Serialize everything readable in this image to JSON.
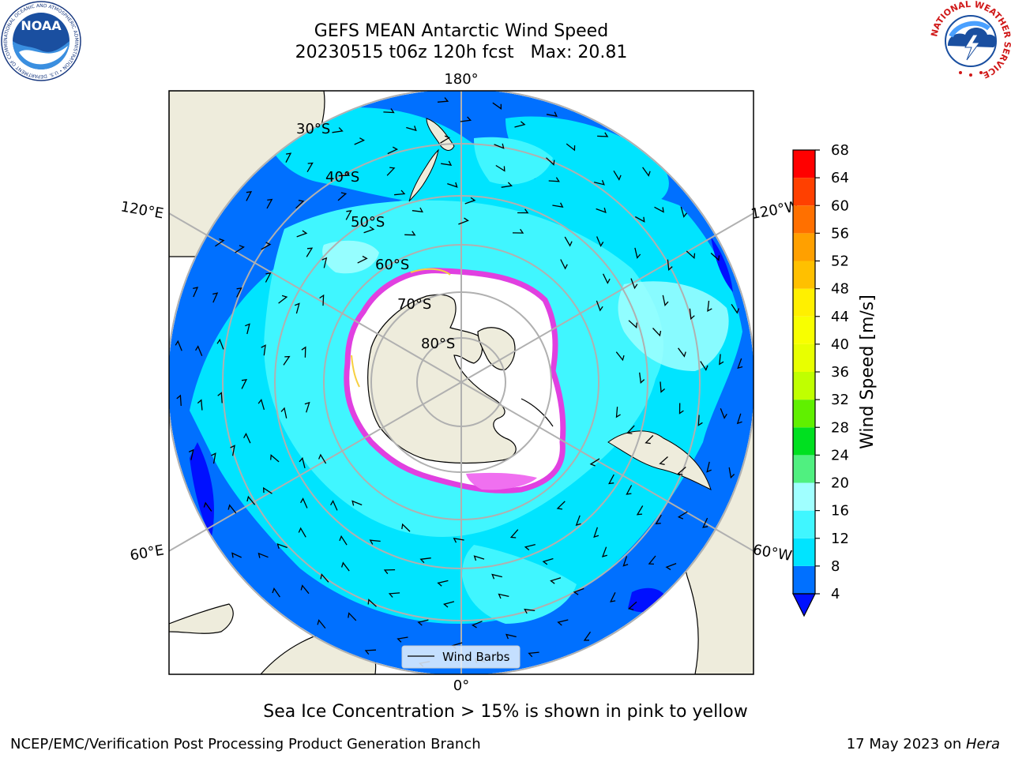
{
  "header": {
    "title": "GEFS MEAN Antarctic Wind Speed",
    "subtitle": "20230515 t06z 120h fcst   Max: 20.81"
  },
  "logos": {
    "left": "noaa-logo",
    "right": "nws-logo",
    "noaa_text": "NOAA",
    "noaa_ring_text": "NATIONAL OCEANIC AND ATMOSPHERIC ADMINISTRATION • U.S. DEPARTMENT OF COMMERCE",
    "nws_ring_text": "NATIONAL WEATHER SERVICE"
  },
  "map": {
    "projection": "south-polar-stereographic",
    "latitude_labels": [
      "30°S",
      "40°S",
      "50°S",
      "60°S",
      "70°S",
      "80°S"
    ],
    "longitude_labels": {
      "top": "180°",
      "bottom": "0°",
      "upper_left": "120°E",
      "upper_right": "120°W",
      "lower_left": "60°E",
      "lower_right": "60°W"
    },
    "legend": {
      "label": "Wind Barbs"
    },
    "colors": {
      "land": "#eeecdc",
      "ice_edge": "#e040e0",
      "ice_edge_yellow": "#f7d040",
      "grid": "#b0b0b0"
    }
  },
  "colorbar": {
    "label": "Wind Speed [m/s]",
    "unit": "m/s",
    "ticks": [
      4,
      8,
      12,
      16,
      20,
      24,
      28,
      32,
      36,
      40,
      44,
      48,
      52,
      56,
      60,
      64,
      68
    ],
    "levels": [
      {
        "from": 4,
        "to": 8,
        "color": "#0070ff"
      },
      {
        "from": 8,
        "to": 12,
        "color": "#00e4ff"
      },
      {
        "from": 12,
        "to": 16,
        "color": "#40f6ff"
      },
      {
        "from": 16,
        "to": 20,
        "color": "#a0ffff"
      },
      {
        "from": 20,
        "to": 24,
        "color": "#50f080"
      },
      {
        "from": 24,
        "to": 28,
        "color": "#00e020"
      },
      {
        "from": 28,
        "to": 32,
        "color": "#60f000"
      },
      {
        "from": 32,
        "to": 36,
        "color": "#c0ff00"
      },
      {
        "from": 36,
        "to": 40,
        "color": "#e8ff00"
      },
      {
        "from": 40,
        "to": 44,
        "color": "#f8ff00"
      },
      {
        "from": 44,
        "to": 48,
        "color": "#fff000"
      },
      {
        "from": 48,
        "to": 52,
        "color": "#ffc000"
      },
      {
        "from": 52,
        "to": 56,
        "color": "#ffa000"
      },
      {
        "from": 56,
        "to": 60,
        "color": "#ff7000"
      },
      {
        "from": 60,
        "to": 64,
        "color": "#ff4000"
      },
      {
        "from": 64,
        "to": 68,
        "color": "#ff0000"
      }
    ],
    "under_color": "#0010ff"
  },
  "caption": "Sea Ice Concentration > 15% is shown in pink to yellow",
  "footer": {
    "left": "NCEP/EMC/Verification Post Processing Product Generation Branch",
    "right_prefix": "17 May 2023 on ",
    "right_machine": "Hera"
  }
}
